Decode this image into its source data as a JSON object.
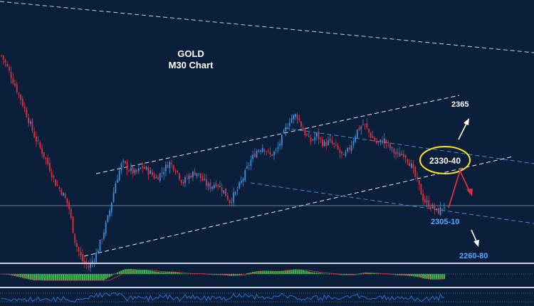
{
  "chart_data": {
    "type": "candlestick",
    "title": "GOLD",
    "subtitle": "M30 Chart",
    "annotations": {
      "resistance_zone": "2330-40",
      "upper_target": "2365",
      "support": "2305-10",
      "lower_target": "2260-80"
    },
    "colors": {
      "background": "#0b1f3a",
      "bull_candle": "#3a8fd8",
      "bear_candle": "#e0303f",
      "channel_line": "#ffffff",
      "dashed_blue": "#3a8fd8",
      "highlight_ellipse": "#ffe21a",
      "arrow_red": "#e0303f",
      "macd_histogram": "#3db84a",
      "oscillator_line": "#2d6fcf"
    },
    "approx_closes": [
      2378,
      2372,
      2365,
      2358,
      2350,
      2342,
      2336,
      2330,
      2322,
      2318,
      2312,
      2296,
      2288,
      2285,
      2290,
      2298,
      2308,
      2322,
      2331,
      2328,
      2326,
      2329,
      2327,
      2324,
      2327,
      2331,
      2328,
      2322,
      2325,
      2327,
      2323,
      2320,
      2322,
      2319,
      2314,
      2318,
      2324,
      2331,
      2336,
      2338,
      2334,
      2336,
      2343,
      2350,
      2352,
      2345,
      2340,
      2343,
      2339,
      2340,
      2337,
      2333,
      2338,
      2345,
      2348,
      2343,
      2339,
      2341,
      2337,
      2334,
      2335,
      2330,
      2322,
      2314,
      2312,
      2309,
      2312
    ]
  }
}
